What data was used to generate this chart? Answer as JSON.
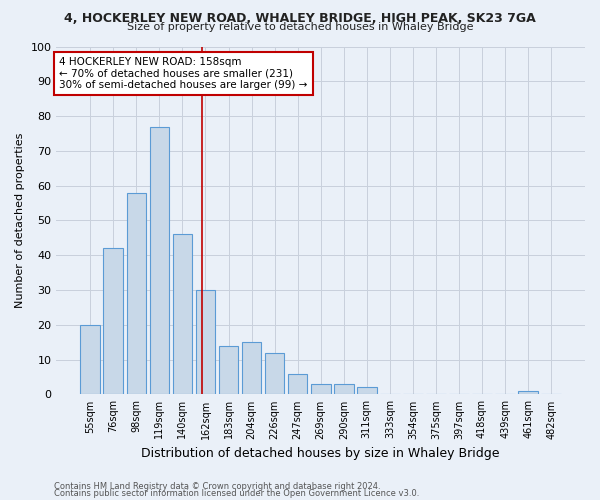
{
  "title": "4, HOCKERLEY NEW ROAD, WHALEY BRIDGE, HIGH PEAK, SK23 7GA",
  "subtitle": "Size of property relative to detached houses in Whaley Bridge",
  "xlabel": "Distribution of detached houses by size in Whaley Bridge",
  "ylabel": "Number of detached properties",
  "footnote1": "Contains HM Land Registry data © Crown copyright and database right 2024.",
  "footnote2": "Contains public sector information licensed under the Open Government Licence v3.0.",
  "categories": [
    "55sqm",
    "76sqm",
    "98sqm",
    "119sqm",
    "140sqm",
    "162sqm",
    "183sqm",
    "204sqm",
    "226sqm",
    "247sqm",
    "269sqm",
    "290sqm",
    "311sqm",
    "333sqm",
    "354sqm",
    "375sqm",
    "397sqm",
    "418sqm",
    "439sqm",
    "461sqm",
    "482sqm"
  ],
  "values": [
    20,
    42,
    58,
    77,
    46,
    30,
    14,
    15,
    12,
    6,
    3,
    3,
    2,
    0,
    0,
    0,
    0,
    0,
    0,
    1,
    0
  ],
  "bar_color": "#c8d8e8",
  "bar_edge_color": "#5b9bd5",
  "grid_color": "#c8d0dc",
  "bg_color": "#eaf0f8",
  "vline_x": 4.85,
  "vline_color": "#c00000",
  "annotation_text": "4 HOCKERLEY NEW ROAD: 158sqm\n← 70% of detached houses are smaller (231)\n30% of semi-detached houses are larger (99) →",
  "annotation_box_color": "#ffffff",
  "annotation_box_edge": "#c00000",
  "ylim": [
    0,
    100
  ],
  "yticks": [
    0,
    10,
    20,
    30,
    40,
    50,
    60,
    70,
    80,
    90,
    100
  ]
}
